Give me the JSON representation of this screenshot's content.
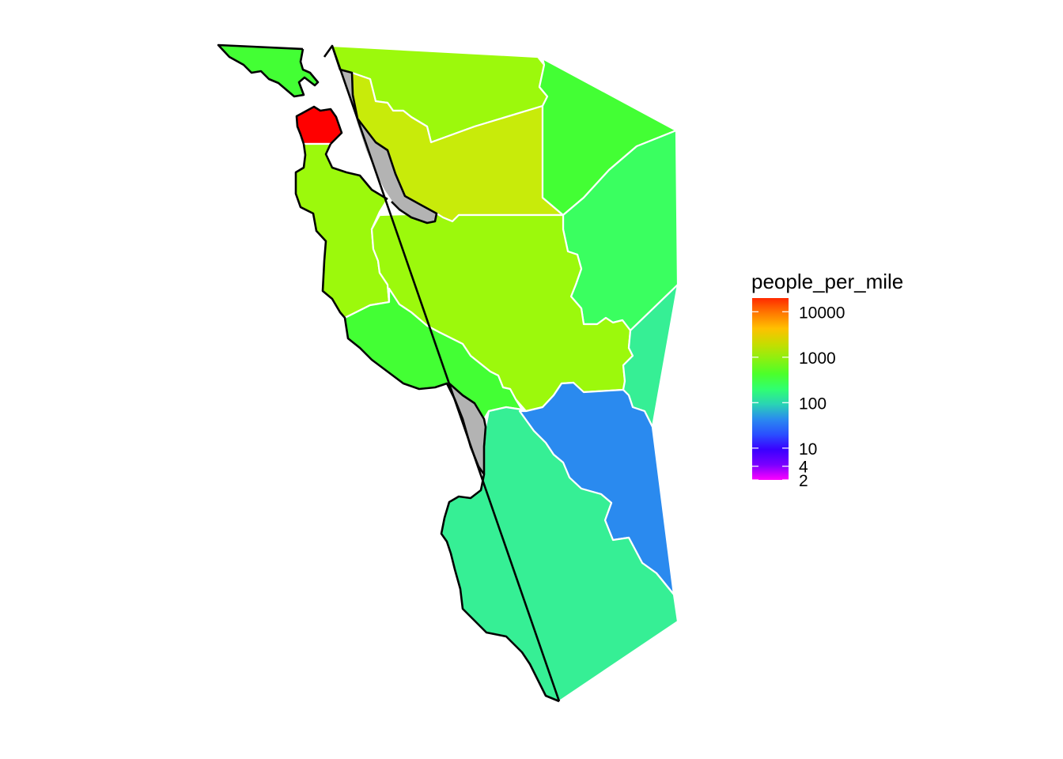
{
  "legend": {
    "title": "people_per_mile",
    "scale": "log10",
    "min": 2,
    "max": 20000,
    "breaks": [
      {
        "label": "10000",
        "value": 10000
      },
      {
        "label": "1000",
        "value": 1000
      },
      {
        "label": "100",
        "value": 100
      },
      {
        "label": "10",
        "value": 10
      },
      {
        "label": "4",
        "value": 4
      },
      {
        "label": "2",
        "value": 2
      }
    ],
    "gradient_colors": [
      "#ff00ff",
      "#7a00ff",
      "#3a00ff",
      "#2a4fff",
      "#2a8aef",
      "#2ad4b4",
      "#30ff70",
      "#4cff2a",
      "#8cf010",
      "#c8dc00",
      "#ffc000",
      "#ff7a00",
      "#ff2a00"
    ]
  },
  "map": {
    "region_colors": {
      "red": "#ff0000",
      "light_green": "#9cf90c",
      "yellow_green": "#c8eb0a",
      "green": "#43ff34",
      "bright_green": "#3aff60",
      "teal": "#36ef95",
      "blue": "#2a8aef",
      "gray": "#b3b3b3"
    },
    "border_color": "#ffffff",
    "outline_color": "#000000"
  }
}
